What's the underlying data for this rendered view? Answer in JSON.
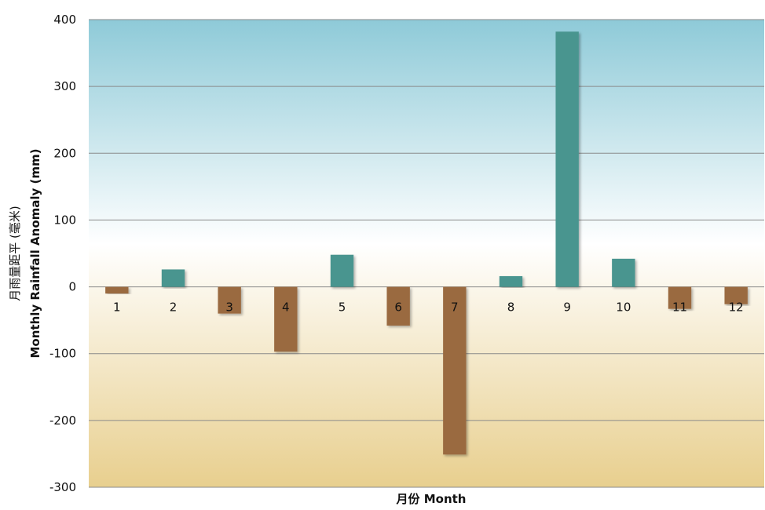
{
  "chart_data": {
    "type": "bar",
    "title": "",
    "xlabel": "月份 Month",
    "ylabel_zh": "月雨量距平 (毫米)",
    "ylabel_en": "Monthly Rainfall Anomaly (mm)",
    "categories": [
      "1",
      "2",
      "3",
      "4",
      "5",
      "6",
      "7",
      "8",
      "9",
      "10",
      "11",
      "12"
    ],
    "values": [
      -10,
      26,
      -40,
      -97,
      48,
      -58,
      -251,
      16,
      382,
      42,
      -33,
      -26
    ],
    "ylim": [
      -300,
      400
    ],
    "yticks": [
      400,
      300,
      200,
      100,
      0,
      -100,
      -200,
      -300
    ],
    "grid": true,
    "legend": "none",
    "colors": {
      "positive": "#4a958f",
      "negative": "#9a6a40",
      "background_top": "#8ecad8",
      "background_mid": "#ffffff",
      "background_bottom": "#e8cf8e",
      "gridline": "#8a8a8a"
    }
  }
}
